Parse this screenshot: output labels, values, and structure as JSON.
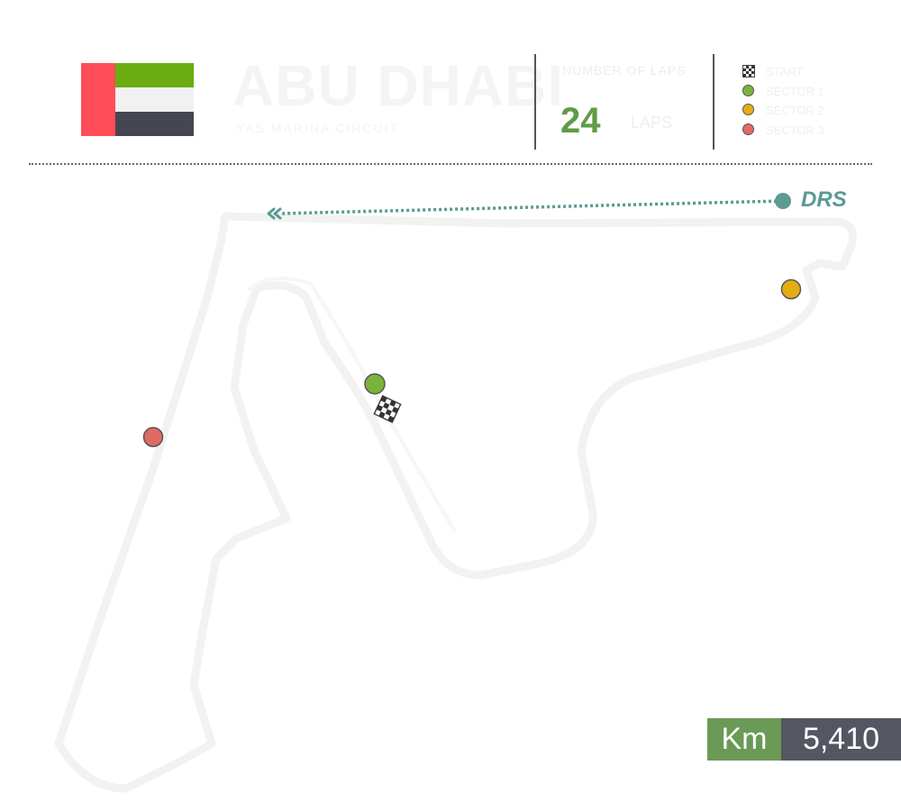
{
  "header": {
    "title": "ABU DHABI",
    "subtitle": "YAS MARINA CIRCUIT",
    "flag": {
      "name": "uae-flag",
      "colors": {
        "hoist": "#ff4d57",
        "top": "#6aac12",
        "middle": "#f1f1f1",
        "bottom": "#464652"
      }
    }
  },
  "stats": {
    "laps_label": "NUMBER OF LAPS",
    "laps_value": "24",
    "laps_unit": "LAPS"
  },
  "legend": {
    "items": [
      {
        "icon": "checkered-flag-icon",
        "label": "START"
      },
      {
        "icon": "green-dot-icon",
        "label": "SECTOR 1",
        "color": "#7bb33a"
      },
      {
        "icon": "yellow-dot-icon",
        "label": "SECTOR 2",
        "color": "#e4ad12"
      },
      {
        "icon": "red-dot-icon",
        "label": "SECTOR 3",
        "color": "#e06a64"
      }
    ]
  },
  "map": {
    "drs_label": "DRS",
    "drs_color": "#5b9a95",
    "markers": [
      {
        "name": "sector-1-marker",
        "color": "#7bb33a"
      },
      {
        "name": "sector-2-marker",
        "color": "#e4ad12"
      },
      {
        "name": "sector-3-marker",
        "color": "#e06a64"
      },
      {
        "name": "start-flag-marker",
        "icon": "checkered-flag-icon"
      }
    ]
  },
  "length": {
    "unit": "Km",
    "value": "5,410",
    "unit_color": "#6a9a56",
    "value_color": "#545761"
  }
}
